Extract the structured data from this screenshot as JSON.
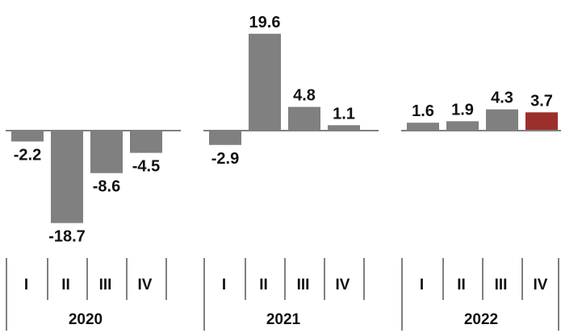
{
  "chart_data": {
    "type": "bar",
    "title": "",
    "xlabel": "",
    "ylabel": "",
    "years": [
      {
        "label": "2020",
        "quarters": [
          "I",
          "II",
          "III",
          "IV"
        ]
      },
      {
        "label": "2021",
        "quarters": [
          "I",
          "II",
          "III",
          "IV"
        ]
      },
      {
        "label": "2022",
        "quarters": [
          "I",
          "II",
          "III",
          "IV"
        ]
      }
    ],
    "categories": [
      "2020 I",
      "2020 II",
      "2020 III",
      "2020 IV",
      "2021 I",
      "2021 II",
      "2021 III",
      "2021 IV",
      "2022 I",
      "2022 II",
      "2022 III",
      "2022 IV"
    ],
    "values": [
      -2.2,
      -18.7,
      -8.6,
      -4.5,
      -2.9,
      19.6,
      4.8,
      1.1,
      1.6,
      1.9,
      4.3,
      3.7
    ],
    "data_labels": [
      "-2.2",
      "-18.7",
      "-8.6",
      "-4.5",
      "-2.9",
      "19.6",
      "4.8",
      "1.1",
      "1.6",
      "1.9",
      "4.3",
      "3.7"
    ],
    "ylim": [
      -20,
      22
    ],
    "grid": false,
    "legend": "none",
    "colors": {
      "bar": "#808080",
      "highlight": "#9b2f2b",
      "axis": "#808080",
      "separator": "#808080",
      "text": "#111111"
    },
    "highlight_index": 11
  }
}
